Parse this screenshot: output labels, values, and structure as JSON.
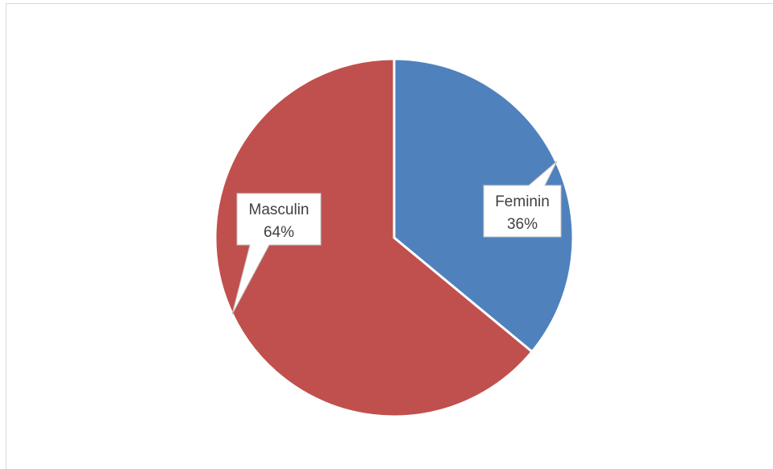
{
  "chart_data": {
    "type": "pie",
    "slices": [
      {
        "label": "Feminin",
        "value": 36,
        "percent_label": "36%",
        "color": "#4f81bd"
      },
      {
        "label": "Masculin",
        "value": 64,
        "percent_label": "64%",
        "color": "#c0504d"
      }
    ],
    "start_angle_deg": 0,
    "direction": "clockwise",
    "data_labels": "callout",
    "legend": "none"
  }
}
